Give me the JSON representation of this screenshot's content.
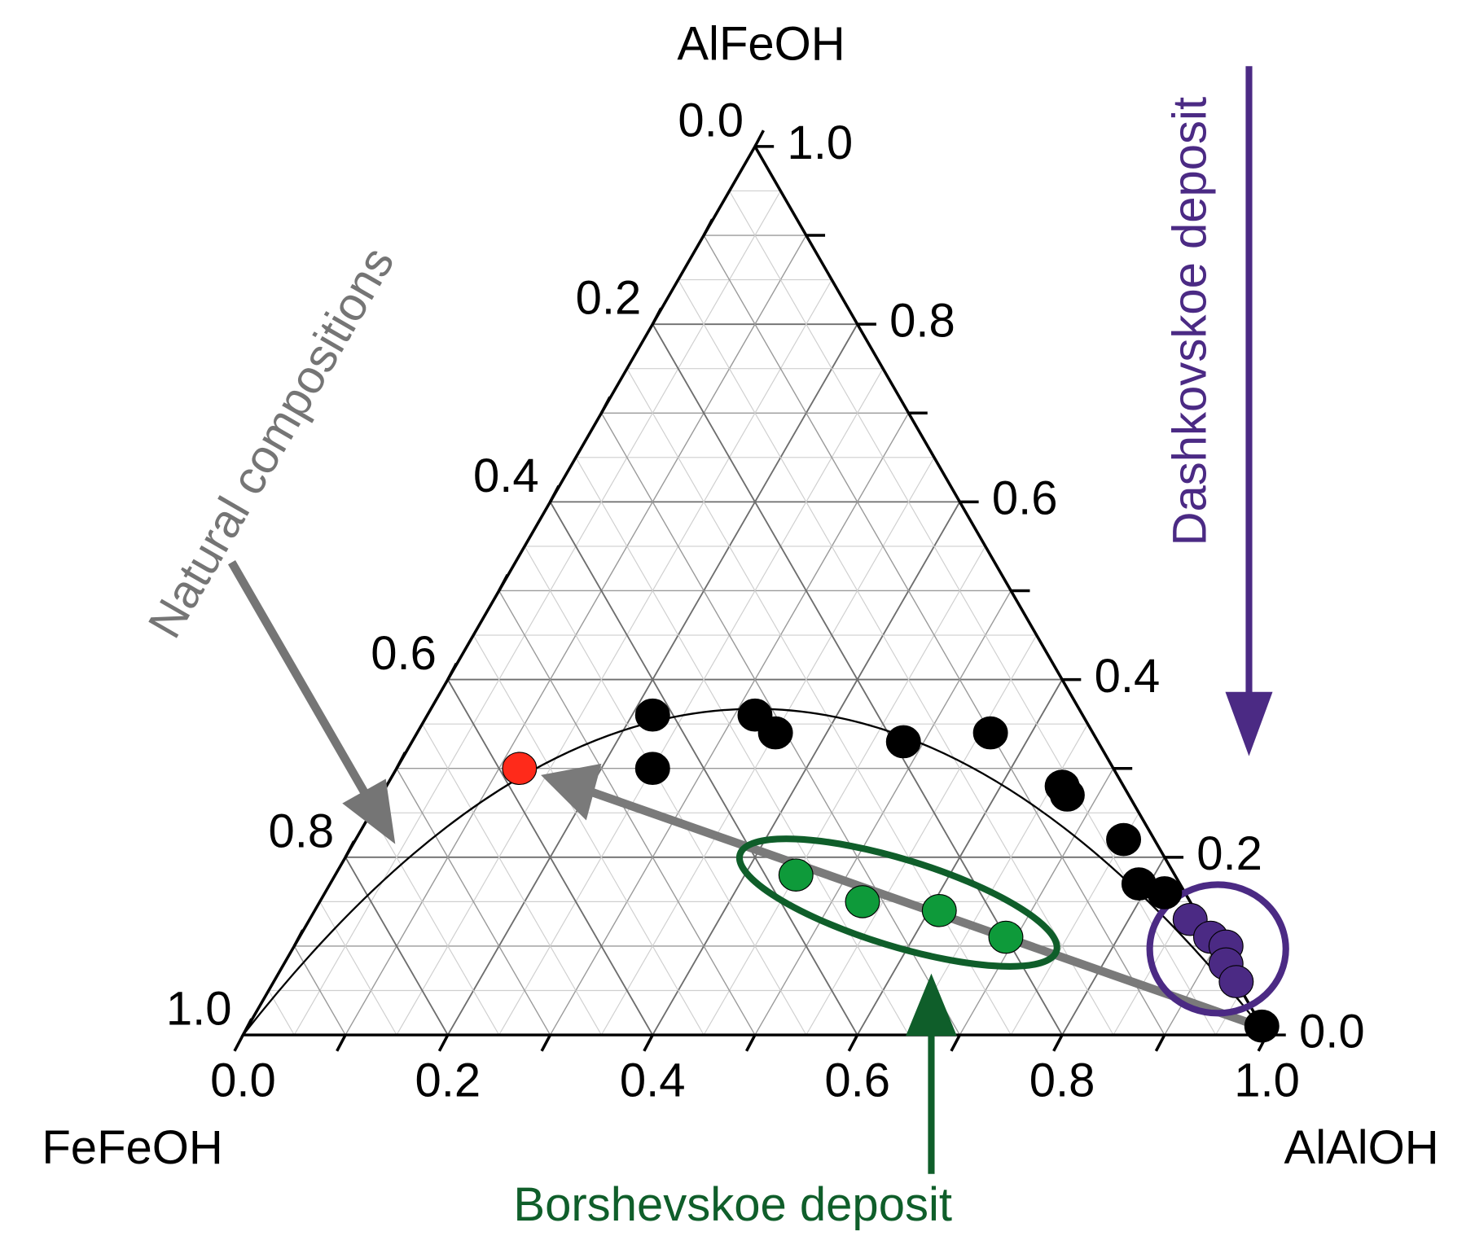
{
  "chart_data": {
    "type": "ternary",
    "vertices": {
      "top": "AlFeOH",
      "left": "FeFeOH",
      "right": "AlAlOH"
    },
    "bottom_ticks": [
      {
        "value": 0,
        "label": "0.0"
      },
      {
        "value": 0.2,
        "label": "0.2"
      },
      {
        "value": 0.4,
        "label": "0.4"
      },
      {
        "value": 0.6,
        "label": "0.6"
      },
      {
        "value": 0.8,
        "label": "0.8"
      },
      {
        "value": 1,
        "label": "1.0"
      }
    ],
    "left_ticks": [
      {
        "value": 0,
        "label": "0.0"
      },
      {
        "value": 0.2,
        "label": "0.2"
      },
      {
        "value": 0.4,
        "label": "0.4"
      },
      {
        "value": 0.6,
        "label": "0.6"
      },
      {
        "value": 0.8,
        "label": "0.8"
      },
      {
        "value": 1,
        "label": "1.0"
      }
    ],
    "right_ticks": [
      {
        "value": 0,
        "label": "0.0"
      },
      {
        "value": 0.2,
        "label": "0.2"
      },
      {
        "value": 0.4,
        "label": "0.4"
      },
      {
        "value": 0.6,
        "label": "0.6"
      },
      {
        "value": 0.8,
        "label": "0.8"
      },
      {
        "value": 1,
        "label": "1.0"
      }
    ],
    "grid": true,
    "series": [
      {
        "color": "#000000",
        "AlAlOH": [
          0.22,
          0.32,
          0.35,
          0.25,
          0.48,
          0.56,
          0.66,
          0.67,
          0.75,
          0.79,
          0.82,
          0.99
        ],
        "AlFeOH": [
          0.36,
          0.36,
          0.34,
          0.3,
          0.33,
          0.34,
          0.28,
          0.27,
          0.22,
          0.17,
          0.16,
          0.01
        ]
      },
      {
        "color": "#ff2a1a",
        "AlAlOH": [
          0.12
        ],
        "AlFeOH": [
          0.3
        ]
      },
      {
        "color": "#0e9a3a",
        "AlAlOH": [
          0.45,
          0.53,
          0.61,
          0.69
        ],
        "AlFeOH": [
          0.18,
          0.15,
          0.14,
          0.11
        ]
      },
      {
        "color": "#4b2a84",
        "AlAlOH": [
          0.86,
          0.89,
          0.91,
          0.92,
          0.94
        ],
        "AlFeOH": [
          0.13,
          0.11,
          0.1,
          0.08,
          0.06
        ]
      }
    ],
    "annotations": {
      "natural": "Natural compositions",
      "dashkovskoe": "Dashkovskoe deposit",
      "borshevskoe": "Borshevskoe deposit"
    }
  }
}
